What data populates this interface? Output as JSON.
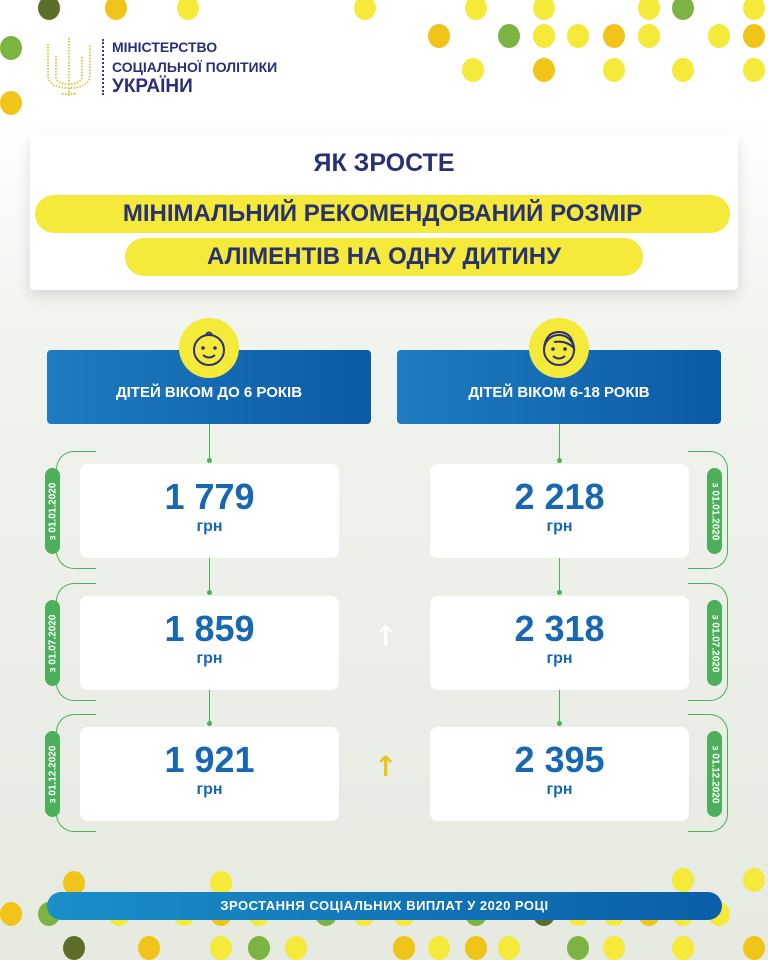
{
  "logo": {
    "line1": "МІНІСТЕРСТВО",
    "line2": "СОЦІАЛЬНОЇ ПОЛІТИКИ",
    "line3": "УКРАЇНИ"
  },
  "title": {
    "line1": "ЯК ЗРОСТЕ",
    "line2": "МІНІМАЛЬНИЙ РЕКОМЕНДОВАНИЙ РОЗМІР",
    "line3": "АЛІМЕНТІВ НА ОДНУ ДИТИНУ"
  },
  "columns": [
    {
      "header": "ДІТЕЙ ВІКОМ ДО 6 РОКІВ",
      "icon": "baby-face-icon",
      "values": [
        {
          "date": "з 01.01.2020",
          "amount": "1 779",
          "unit": "грн"
        },
        {
          "date": "з 01.07.2020",
          "amount": "1 859",
          "unit": "грн"
        },
        {
          "date": "з 01.12.2020",
          "amount": "1 921",
          "unit": "грн"
        }
      ]
    },
    {
      "header": "ДІТЕЙ ВІКОМ 6-18 РОКІВ",
      "icon": "child-face-icon",
      "values": [
        {
          "date": "з 01.01.2020",
          "amount": "2 218",
          "unit": "грн"
        },
        {
          "date": "з 01.07.2020",
          "amount": "2 318",
          "unit": "грн"
        },
        {
          "date": "з 01.12.2020",
          "amount": "2 395",
          "unit": "грн"
        }
      ]
    }
  ],
  "arrows": [
    {
      "icon": "arrow-up-icon",
      "glyph": "↑",
      "color": "#ffffff"
    },
    {
      "icon": "arrow-up-icon",
      "glyph": "↑",
      "color": "#e8c51a"
    }
  ],
  "banner": "ЗРОСТАННЯ СОЦІАЛЬНИХ ВИПЛАТ У 2020 РОЦІ",
  "colors": {
    "navy": "#283172",
    "blue": "#1767b3",
    "yellow": "#f5e93a",
    "green": "#4caf5b"
  }
}
